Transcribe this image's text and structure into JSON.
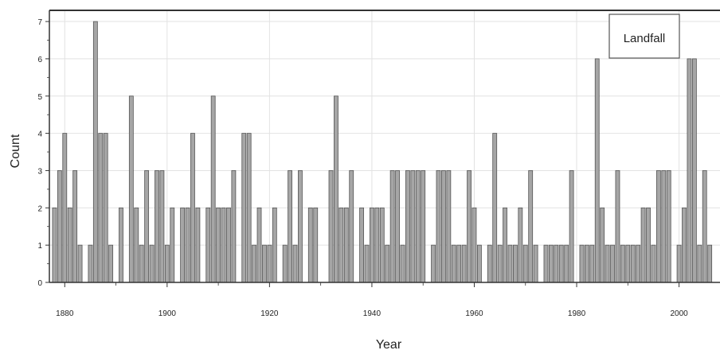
{
  "chart_data": {
    "type": "bar",
    "xlabel": "Year",
    "ylabel": "Count",
    "ylim": [
      0,
      7.3
    ],
    "xlim": [
      1877,
      2008
    ],
    "xticks": [
      1880,
      1900,
      1920,
      1940,
      1960,
      1980,
      2000
    ],
    "yticks": [
      0,
      1,
      2,
      3,
      4,
      5,
      6,
      7
    ],
    "grid": true,
    "legend_placement": "top-right",
    "series": [
      {
        "name": "Landfall",
        "color": "#a6a6a6",
        "x": [
          1878,
          1879,
          1880,
          1881,
          1882,
          1883,
          1885,
          1886,
          1887,
          1888,
          1889,
          1891,
          1893,
          1894,
          1895,
          1896,
          1897,
          1898,
          1899,
          1900,
          1901,
          1903,
          1904,
          1905,
          1906,
          1908,
          1909,
          1910,
          1911,
          1912,
          1913,
          1915,
          1916,
          1917,
          1918,
          1919,
          1920,
          1921,
          1923,
          1924,
          1925,
          1926,
          1928,
          1929,
          1932,
          1933,
          1934,
          1935,
          1936,
          1938,
          1939,
          1940,
          1941,
          1942,
          1943,
          1944,
          1945,
          1946,
          1947,
          1948,
          1949,
          1950,
          1952,
          1953,
          1954,
          1955,
          1956,
          1957,
          1958,
          1959,
          1960,
          1961,
          1963,
          1964,
          1965,
          1966,
          1967,
          1968,
          1969,
          1970,
          1971,
          1972,
          1974,
          1975,
          1976,
          1977,
          1978,
          1979,
          1981,
          1982,
          1983,
          1984,
          1985,
          1986,
          1987,
          1988,
          1989,
          1990,
          1991,
          1992,
          1993,
          1994,
          1995,
          1996,
          1997,
          1998,
          2000,
          2001,
          2002,
          2003,
          2004,
          2005,
          2006
        ],
        "values": [
          2,
          3,
          4,
          2,
          3,
          1,
          1,
          7,
          4,
          4,
          1,
          2,
          5,
          2,
          1,
          3,
          1,
          3,
          3,
          1,
          2,
          2,
          2,
          4,
          2,
          2,
          5,
          2,
          2,
          2,
          3,
          4,
          4,
          1,
          2,
          1,
          1,
          2,
          1,
          3,
          1,
          3,
          2,
          2,
          3,
          5,
          2,
          2,
          3,
          2,
          1,
          2,
          2,
          2,
          1,
          3,
          3,
          1,
          3,
          3,
          3,
          3,
          1,
          3,
          3,
          3,
          1,
          1,
          1,
          3,
          2,
          1,
          1,
          4,
          1,
          2,
          1,
          1,
          2,
          1,
          3,
          1,
          1,
          1,
          1,
          1,
          1,
          3,
          1,
          1,
          1,
          6,
          2,
          1,
          1,
          3,
          1,
          1,
          1,
          1,
          2,
          2,
          1,
          3,
          3,
          3,
          1,
          2,
          6,
          6,
          1,
          3,
          1
        ]
      }
    ]
  }
}
